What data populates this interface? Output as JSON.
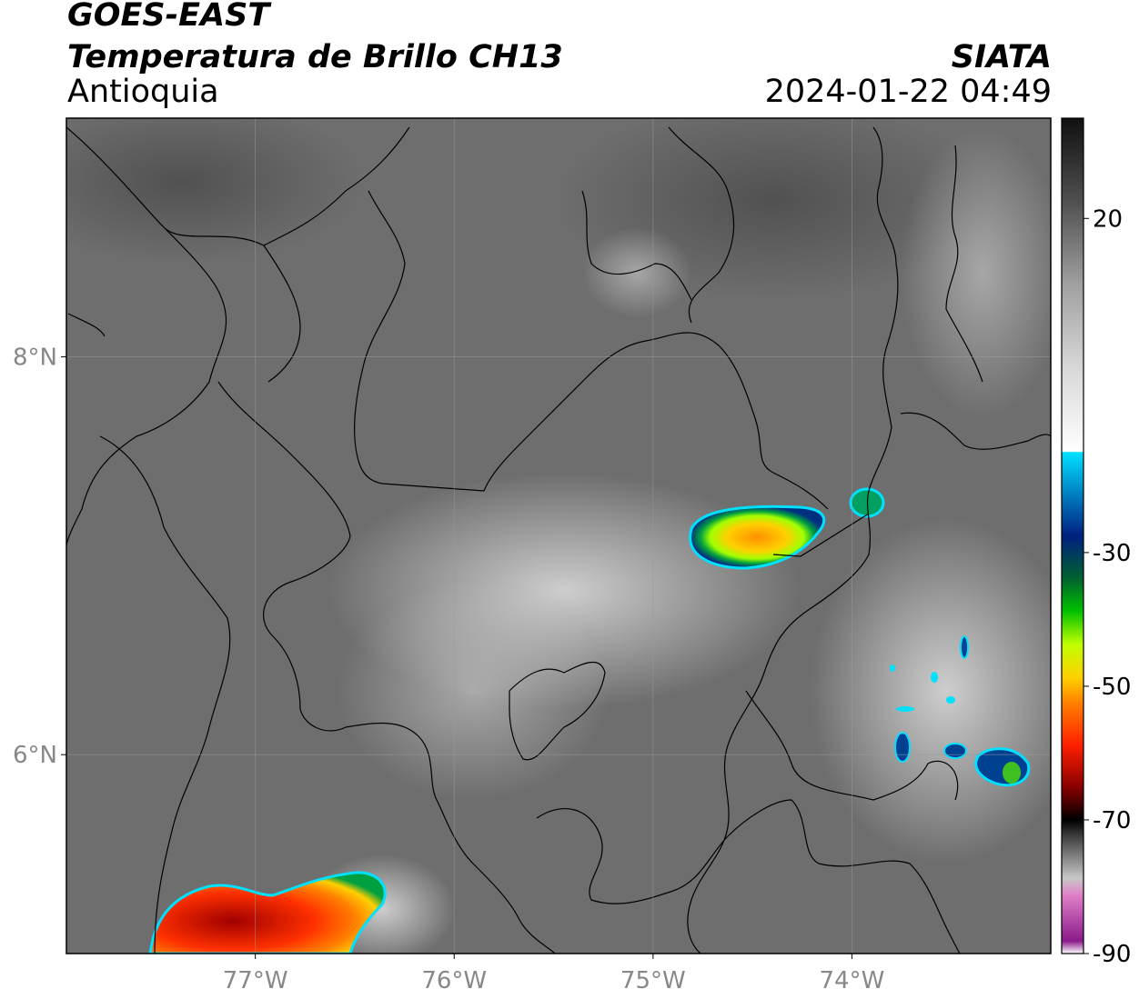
{
  "header": {
    "satellite": "GOES-EAST",
    "product": "Temperatura de Brillo CH13",
    "region": "Antioquia",
    "organization": "SIATA",
    "timestamp": "2024-01-22 04:49"
  },
  "map": {
    "lon_range": [
      -77.95,
      -73.0
    ],
    "lat_range": [
      5.0,
      9.2
    ],
    "lat_ticks": [
      {
        "value": 8,
        "label": "8°N"
      },
      {
        "value": 6,
        "label": "6°N"
      }
    ],
    "lon_ticks": [
      {
        "value": -77,
        "label": "77°W"
      },
      {
        "value": -76,
        "label": "76°W"
      },
      {
        "value": -75,
        "label": "75°W"
      },
      {
        "value": -74,
        "label": "74°W"
      }
    ],
    "grid": true
  },
  "colorbar": {
    "range": [
      -90,
      35
    ],
    "ticks": [
      {
        "value": 20,
        "label": "20"
      },
      {
        "value": -30,
        "label": "-30"
      },
      {
        "value": -50,
        "label": "-50"
      },
      {
        "value": -70,
        "label": "-70"
      },
      {
        "value": -90,
        "label": "-90"
      }
    ]
  },
  "colors": {
    "land_gray": "#6e6e6e",
    "border": "#000000"
  }
}
